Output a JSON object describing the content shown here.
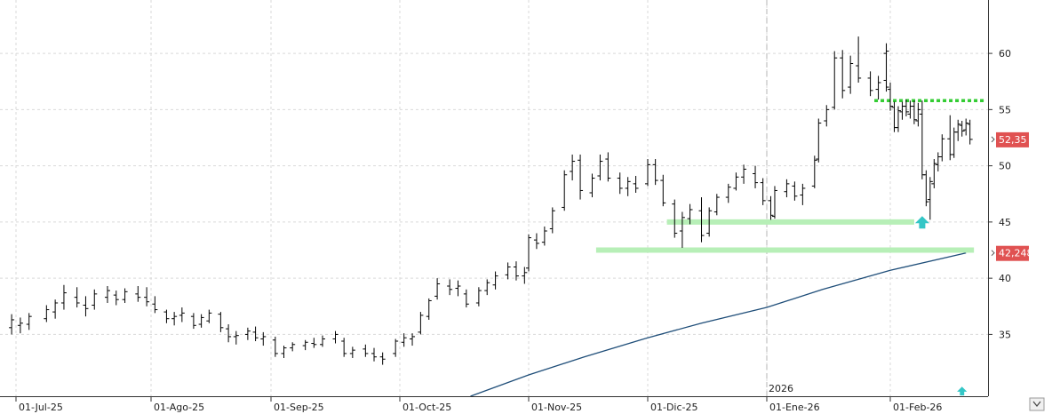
{
  "chart_data": {
    "type": "ohlc",
    "title": "",
    "xlabel": "",
    "ylabel": "",
    "ylim": [
      29.5,
      62.3
    ],
    "grid": true,
    "year_marker": {
      "label": "2026",
      "date": "2026-01-01"
    },
    "x_ticks": [
      {
        "label": "01-Jul-25",
        "date": "2025-07-01"
      },
      {
        "label": "01-Ago-25",
        "date": "2025-08-01"
      },
      {
        "label": "01-Sep-25",
        "date": "2025-09-01"
      },
      {
        "label": "01-Oct-25",
        "date": "2025-10-01"
      },
      {
        "label": "01-Nov-25",
        "date": "2025-11-01"
      },
      {
        "label": "01-Dic-25",
        "date": "2025-12-01"
      },
      {
        "label": "01-Ene-26",
        "date": "2026-01-01"
      },
      {
        "label": "01-Feb-26",
        "date": "2026-02-01"
      }
    ],
    "y_ticks": [
      {
        "label": "35",
        "value": 35
      },
      {
        "label": "40",
        "value": 40
      },
      {
        "label": "45",
        "value": 45
      },
      {
        "label": "50",
        "value": 50
      },
      {
        "label": "55",
        "value": 55
      },
      {
        "label": "60",
        "value": 60
      }
    ],
    "price_tags": [
      {
        "label": "52,35",
        "value": 52.35,
        "color": "#e05252"
      },
      {
        "label": "42,248",
        "value": 42.248,
        "color": "#e05252"
      }
    ],
    "moving_average": {
      "color": "#1f4e79",
      "points": [
        [
          "2025-10-18",
          29.5
        ],
        [
          "2025-11-01",
          31.4
        ],
        [
          "2025-11-15",
          33.0
        ],
        [
          "2025-12-01",
          34.7
        ],
        [
          "2025-12-15",
          36.0
        ],
        [
          "2026-01-01",
          37.4
        ],
        [
          "2026-01-15",
          39.0
        ],
        [
          "2026-02-01",
          40.7
        ],
        [
          "2026-02-20",
          42.25
        ]
      ]
    },
    "levels": [
      {
        "name": "resistance",
        "color": "#33cc33",
        "style": "dotted",
        "value": 55.8,
        "from": "2026-01-28",
        "to": "2026-02-25"
      },
      {
        "name": "support-upper",
        "color": "#b7efb7",
        "style": "solid",
        "value": 45.0,
        "from": "2025-12-06",
        "to": "2026-02-07"
      },
      {
        "name": "support-lower",
        "color": "#b7efb7",
        "style": "solid",
        "value": 42.5,
        "from": "2025-11-18",
        "to": "2026-02-22"
      }
    ],
    "markers": [
      {
        "name": "up-arrow",
        "color": "#33c6c6",
        "date": "2026-02-09",
        "value": 44.9
      },
      {
        "name": "up-arrow-small",
        "color": "#33c6c6",
        "date": "2026-02-19",
        "value": 29.9
      }
    ],
    "bars": [
      [
        "2025-06-20",
        34.0,
        34.6,
        33.3,
        34.3
      ],
      [
        "2025-06-24",
        34.4,
        35.3,
        34.0,
        35.0
      ],
      [
        "2025-06-26",
        35.1,
        36.3,
        34.9,
        36.0
      ],
      [
        "2025-06-30",
        35.6,
        36.8,
        35.0,
        36.3
      ],
      [
        "2025-07-02",
        35.8,
        36.5,
        35.1,
        36.0
      ],
      [
        "2025-07-04",
        35.9,
        36.9,
        35.4,
        36.6
      ],
      [
        "2025-07-08",
        36.4,
        37.6,
        36.1,
        37.2
      ],
      [
        "2025-07-10",
        37.0,
        38.1,
        36.4,
        37.8
      ],
      [
        "2025-07-12",
        37.8,
        39.4,
        37.2,
        38.7
      ],
      [
        "2025-07-15",
        38.3,
        39.2,
        37.4,
        37.8
      ],
      [
        "2025-07-17",
        37.6,
        38.4,
        36.6,
        37.3
      ],
      [
        "2025-07-19",
        37.6,
        39.0,
        37.2,
        38.6
      ],
      [
        "2025-07-22",
        38.3,
        39.3,
        37.8,
        38.9
      ],
      [
        "2025-07-24",
        38.5,
        38.9,
        37.6,
        38.1
      ],
      [
        "2025-07-26",
        38.1,
        39.1,
        37.8,
        38.8
      ],
      [
        "2025-07-29",
        38.6,
        39.3,
        37.9,
        38.3
      ],
      [
        "2025-07-31",
        38.3,
        39.2,
        37.5,
        37.9
      ],
      [
        "2025-08-02",
        37.7,
        38.4,
        36.9,
        37.2
      ],
      [
        "2025-08-05",
        37.0,
        37.2,
        36.0,
        36.4
      ],
      [
        "2025-08-07",
        36.4,
        37.0,
        35.8,
        36.6
      ],
      [
        "2025-08-09",
        36.7,
        37.4,
        36.1,
        36.9
      ],
      [
        "2025-08-12",
        36.6,
        36.9,
        35.5,
        35.8
      ],
      [
        "2025-08-14",
        35.9,
        36.8,
        35.6,
        36.5
      ],
      [
        "2025-08-16",
        36.2,
        37.2,
        36.0,
        36.9
      ],
      [
        "2025-08-19",
        36.8,
        37.0,
        35.2,
        35.6
      ],
      [
        "2025-08-21",
        35.5,
        35.9,
        34.3,
        34.8
      ],
      [
        "2025-08-23",
        34.8,
        35.3,
        34.1,
        34.9
      ],
      [
        "2025-08-26",
        35.0,
        35.6,
        34.5,
        35.3
      ],
      [
        "2025-08-28",
        35.2,
        35.7,
        34.4,
        34.7
      ],
      [
        "2025-08-30",
        34.6,
        35.2,
        34.0,
        34.8
      ],
      [
        "2025-09-02",
        34.5,
        34.8,
        33.0,
        33.3
      ],
      [
        "2025-09-04",
        33.3,
        34.0,
        32.9,
        33.8
      ],
      [
        "2025-09-06",
        33.8,
        34.3,
        33.5,
        34.1
      ],
      [
        "2025-09-09",
        34.0,
        34.5,
        33.6,
        34.3
      ],
      [
        "2025-09-11",
        34.2,
        34.7,
        33.8,
        34.1
      ],
      [
        "2025-09-13",
        34.1,
        34.9,
        33.9,
        34.6
      ],
      [
        "2025-09-16",
        34.6,
        35.3,
        34.2,
        35.0
      ],
      [
        "2025-09-18",
        34.4,
        34.7,
        33.0,
        33.3
      ],
      [
        "2025-09-20",
        33.3,
        33.9,
        32.9,
        33.6
      ],
      [
        "2025-09-23",
        33.7,
        34.1,
        33.0,
        33.3
      ],
      [
        "2025-09-25",
        33.3,
        33.8,
        32.6,
        33.0
      ],
      [
        "2025-09-27",
        33.0,
        33.4,
        32.3,
        32.8
      ],
      [
        "2025-09-30",
        33.3,
        34.6,
        33.0,
        34.4
      ],
      [
        "2025-10-02",
        34.3,
        35.1,
        33.9,
        34.7
      ],
      [
        "2025-10-04",
        34.6,
        35.1,
        34.0,
        34.8
      ],
      [
        "2025-10-06",
        35.2,
        37.0,
        35.0,
        36.7
      ],
      [
        "2025-10-08",
        36.6,
        38.2,
        36.3,
        38.0
      ],
      [
        "2025-10-10",
        38.4,
        40.0,
        38.1,
        39.5
      ],
      [
        "2025-10-13",
        39.3,
        39.9,
        38.5,
        39.0
      ],
      [
        "2025-10-15",
        39.1,
        39.8,
        38.4,
        39.3
      ],
      [
        "2025-10-17",
        38.6,
        39.0,
        37.4,
        37.7
      ],
      [
        "2025-10-20",
        37.8,
        39.2,
        37.5,
        38.9
      ],
      [
        "2025-10-22",
        38.9,
        39.9,
        38.5,
        39.6
      ],
      [
        "2025-10-24",
        39.4,
        40.6,
        39.0,
        40.2
      ],
      [
        "2025-10-27",
        40.3,
        41.4,
        39.9,
        41.0
      ],
      [
        "2025-10-29",
        41.0,
        41.5,
        39.8,
        40.2
      ],
      [
        "2025-10-31",
        40.2,
        41.0,
        39.5,
        40.5
      ],
      [
        "2025-11-01",
        40.9,
        43.9,
        40.6,
        43.6
      ],
      [
        "2025-11-03",
        43.4,
        44.0,
        42.6,
        43.1
      ],
      [
        "2025-11-05",
        43.2,
        44.6,
        42.9,
        44.2
      ],
      [
        "2025-11-07",
        44.4,
        46.3,
        44.0,
        46.0
      ],
      [
        "2025-11-10",
        46.3,
        49.6,
        46.0,
        49.2
      ],
      [
        "2025-11-12",
        49.5,
        51.0,
        48.7,
        50.4
      ],
      [
        "2025-11-14",
        50.5,
        51.0,
        47.0,
        47.8
      ],
      [
        "2025-11-17",
        47.6,
        49.3,
        47.2,
        48.9
      ],
      [
        "2025-11-19",
        49.1,
        51.0,
        48.7,
        50.4
      ],
      [
        "2025-11-21",
        50.6,
        51.2,
        48.6,
        48.9
      ],
      [
        "2025-11-24",
        48.9,
        49.4,
        47.5,
        48.0
      ],
      [
        "2025-11-26",
        48.0,
        49.0,
        47.3,
        48.6
      ],
      [
        "2025-11-28",
        48.4,
        49.1,
        47.6,
        48.0
      ],
      [
        "2025-12-01",
        48.4,
        50.6,
        48.2,
        50.1
      ],
      [
        "2025-12-03",
        50.1,
        50.6,
        48.3,
        48.7
      ],
      [
        "2025-12-05",
        48.7,
        49.2,
        46.4,
        46.7
      ],
      [
        "2025-12-08",
        46.6,
        47.0,
        43.6,
        44.0
      ],
      [
        "2025-12-10",
        44.2,
        45.9,
        42.7,
        45.4
      ],
      [
        "2025-12-12",
        45.3,
        46.6,
        44.8,
        46.1
      ],
      [
        "2025-12-15",
        46.0,
        47.2,
        43.2,
        43.8
      ],
      [
        "2025-12-17",
        44.0,
        46.3,
        43.7,
        46.0
      ],
      [
        "2025-12-19",
        45.9,
        47.5,
        45.6,
        47.2
      ],
      [
        "2025-12-22",
        47.2,
        48.4,
        46.7,
        48.1
      ],
      [
        "2025-12-24",
        48.0,
        49.4,
        47.8,
        49.0
      ],
      [
        "2025-12-26",
        49.0,
        50.1,
        48.4,
        49.7
      ],
      [
        "2025-12-29",
        49.3,
        50.0,
        48.0,
        48.5
      ],
      [
        "2025-12-31",
        48.5,
        48.9,
        46.5,
        46.9
      ],
      [
        "2026-01-02",
        46.9,
        47.3,
        45.2,
        45.6
      ],
      [
        "2026-01-03",
        45.5,
        48.2,
        45.3,
        47.8
      ],
      [
        "2026-01-06",
        47.7,
        48.8,
        47.2,
        48.4
      ],
      [
        "2026-01-08",
        48.2,
        48.6,
        46.9,
        47.3
      ],
      [
        "2026-01-10",
        47.4,
        48.4,
        46.5,
        48.0
      ],
      [
        "2026-01-13",
        48.2,
        50.9,
        48.0,
        50.5
      ],
      [
        "2026-01-14",
        50.6,
        54.2,
        50.3,
        53.8
      ],
      [
        "2026-01-16",
        54.0,
        55.4,
        53.5,
        55.0
      ],
      [
        "2026-01-18",
        55.2,
        60.2,
        55.0,
        59.6
      ],
      [
        "2026-01-20",
        59.6,
        60.3,
        56.0,
        56.7
      ],
      [
        "2026-01-22",
        57.0,
        59.8,
        56.4,
        59.1
      ],
      [
        "2026-01-24",
        58.9,
        61.5,
        57.4,
        57.8
      ],
      [
        "2026-01-27",
        57.8,
        58.4,
        56.2,
        56.7
      ],
      [
        "2026-01-29",
        56.8,
        58.0,
        55.9,
        57.4
      ],
      [
        "2026-01-31",
        57.6,
        60.9,
        57.0,
        60.2
      ],
      [
        "2026-01-31",
        60.0,
        60.8,
        56.6,
        57.0
      ],
      [
        "2026-02-01",
        56.8,
        57.4,
        54.9,
        55.3
      ],
      [
        "2026-02-02",
        55.2,
        55.7,
        53.0,
        53.4
      ],
      [
        "2026-02-03",
        53.4,
        55.3,
        53.0,
        54.9
      ],
      [
        "2026-02-04",
        54.8,
        55.7,
        54.1,
        55.3
      ],
      [
        "2026-02-05",
        55.3,
        55.9,
        54.4,
        54.8
      ],
      [
        "2026-02-06",
        54.6,
        55.8,
        54.2,
        55.3
      ],
      [
        "2026-02-07",
        55.3,
        55.8,
        53.7,
        54.1
      ],
      [
        "2026-02-08",
        54.0,
        55.6,
        53.5,
        55.0
      ],
      [
        "2026-02-09",
        54.6,
        55.8,
        48.8,
        49.2
      ],
      [
        "2026-02-10",
        49.2,
        49.6,
        46.4,
        46.8
      ],
      [
        "2026-02-11",
        47.0,
        49.0,
        45.2,
        48.6
      ],
      [
        "2026-02-12",
        48.4,
        50.6,
        48.0,
        50.2
      ],
      [
        "2026-02-13",
        50.1,
        51.2,
        49.5,
        50.8
      ],
      [
        "2026-02-14",
        50.8,
        52.8,
        50.4,
        52.4
      ],
      [
        "2026-02-16",
        52.4,
        54.5,
        50.5,
        51.0
      ],
      [
        "2026-02-17",
        51.0,
        53.4,
        50.7,
        53.0
      ],
      [
        "2026-02-18",
        53.0,
        54.1,
        52.2,
        53.7
      ],
      [
        "2026-02-19",
        53.6,
        54.0,
        52.6,
        53.1
      ],
      [
        "2026-02-20",
        53.2,
        54.2,
        52.7,
        53.8
      ],
      [
        "2026-02-21",
        53.7,
        54.1,
        51.9,
        52.35
      ]
    ]
  }
}
